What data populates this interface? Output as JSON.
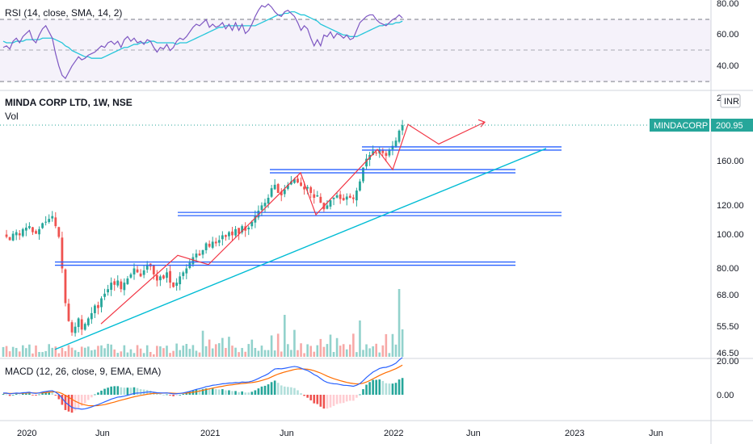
{
  "chart_data": {
    "type": "candlestick",
    "title": "MINDA CORP LTD, 1W, NSE",
    "volume_label": "Vol",
    "currency": "INR",
    "price_scale": "log",
    "price_ylim": [
      46.5,
      205
    ],
    "price_ticks": [
      "160.00",
      "120.00",
      "100.00",
      "80.00",
      "68.00",
      "55.50",
      "46.50"
    ],
    "price_top_tick": "2",
    "x_labels": [
      "2020",
      "Jun",
      "2021",
      "Jun",
      "2022",
      "Jun",
      "2023",
      "Jun"
    ],
    "last_price": {
      "symbol": "MINDACORP",
      "value": "200.95",
      "color": "#26a69a"
    },
    "colors": {
      "up": "#26a69a",
      "down": "#ef5350",
      "zone": "#2962ff",
      "trend": "#00bcd4",
      "path": "#f23645",
      "rsi": "#7e57c2",
      "rsi_ma": "#26c6da",
      "macd": "#2962ff",
      "signal": "#ff6d00"
    },
    "weekly_closes": [
      100,
      98,
      96,
      100,
      101,
      99,
      103,
      104,
      105,
      101,
      100,
      103,
      107,
      108,
      110,
      112,
      105,
      98,
      80,
      64,
      57,
      53,
      55,
      58,
      54,
      56,
      58,
      60,
      63,
      62,
      66,
      68,
      70,
      73,
      72,
      74,
      70,
      73,
      75,
      77,
      80,
      78,
      76,
      79,
      82,
      81,
      77,
      74,
      76,
      75,
      78,
      73,
      71,
      73,
      76,
      78,
      80,
      83,
      86,
      88,
      87,
      90,
      94,
      92,
      95,
      94,
      96,
      99,
      98,
      101,
      99,
      103,
      100,
      105,
      102,
      104,
      108,
      112,
      116,
      120,
      122,
      126,
      134,
      137,
      130,
      128,
      133,
      137,
      140,
      142,
      139,
      136,
      133,
      135,
      130,
      126,
      128,
      122,
      117,
      120,
      124,
      126,
      128,
      125,
      124,
      127,
      126,
      125,
      132,
      140,
      153,
      162,
      166,
      170,
      168,
      172,
      168,
      165,
      171,
      176,
      182,
      194,
      200.95
    ],
    "support_zones": [
      {
        "price": 82.5,
        "start": "2020-03",
        "end": "2022-09"
      },
      {
        "price": 113.5,
        "start": "2020-11",
        "end": "2022-12"
      },
      {
        "price": 149.5,
        "start": "2021-05",
        "end": "2022-09"
      },
      {
        "price": 173,
        "start": "2021-11",
        "end": "2022-12"
      }
    ],
    "rsi": {
      "label": "RSI (14, close, SMA, 14, 2)",
      "ticks": [
        "80.00",
        "60.00",
        "40.00"
      ],
      "ylim": [
        30,
        80
      ],
      "levels": [
        70,
        50,
        30
      ],
      "values": [
        52,
        53,
        51,
        56,
        58,
        55,
        59,
        61,
        63,
        57,
        55,
        60,
        64,
        66,
        62,
        58,
        48,
        40,
        34,
        32,
        36,
        40,
        43,
        46,
        44,
        45,
        47,
        48,
        49,
        51,
        53,
        52,
        55,
        56,
        54,
        56,
        52,
        57,
        59,
        56,
        58,
        55,
        56,
        54,
        57,
        56,
        52,
        49,
        52,
        51,
        54,
        50,
        52,
        56,
        58,
        57,
        59,
        62,
        65,
        67,
        66,
        68,
        70,
        65,
        67,
        65,
        66,
        68,
        64,
        67,
        63,
        68,
        63,
        67,
        61,
        63,
        67,
        72,
        76,
        79,
        78,
        80,
        78,
        75,
        73,
        72,
        75,
        76,
        74,
        72,
        68,
        63,
        66,
        64,
        58,
        53,
        57,
        53,
        60,
        59,
        62,
        58,
        61,
        60,
        58,
        60,
        57,
        58,
        63,
        68,
        70,
        72,
        73,
        73,
        70,
        68,
        67,
        66,
        68,
        70,
        71,
        73,
        71
      ],
      "ma": [
        56,
        55,
        55,
        55,
        56,
        56,
        56,
        57,
        57,
        57,
        57,
        57,
        58,
        58,
        58,
        58,
        57,
        56,
        55,
        53,
        52,
        50,
        49,
        48,
        47,
        46,
        46,
        45,
        45,
        45,
        45,
        46,
        47,
        48,
        49,
        50,
        51,
        52,
        52,
        53,
        54,
        54,
        55,
        55,
        55,
        56,
        56,
        55,
        55,
        55,
        55,
        55,
        55,
        54,
        55,
        55,
        55,
        56,
        57,
        58,
        59,
        60,
        61,
        62,
        63,
        64,
        65,
        65,
        66,
        66,
        66,
        66,
        66,
        66,
        66,
        66,
        66,
        66,
        67,
        68,
        69,
        70,
        71,
        72,
        73,
        73,
        74,
        74,
        75,
        75,
        74,
        73,
        73,
        72,
        71,
        70,
        69,
        67,
        66,
        65,
        64,
        63,
        62,
        61,
        60,
        60,
        59,
        59,
        59,
        60,
        61,
        62,
        63,
        64,
        65,
        66,
        66,
        67,
        67,
        67,
        68,
        68,
        69
      ]
    },
    "macd": {
      "label": "MACD (12, 26, close, 9, EMA, EMA)",
      "ticks": [
        "20.00",
        "0.00"
      ],
      "ylim": [
        -10,
        22
      ],
      "macd_values": [
        1,
        1,
        0.5,
        0.8,
        1,
        0.9,
        1.2,
        1.3,
        1.5,
        1,
        0.8,
        1.1,
        1.6,
        1.9,
        2.2,
        2.4,
        1.5,
        0.2,
        -2,
        -4.5,
        -6,
        -7.5,
        -8,
        -8.2,
        -8.5,
        -8.3,
        -7.8,
        -7.2,
        -6.4,
        -5.8,
        -5,
        -4.2,
        -3.4,
        -2.6,
        -2,
        -1.4,
        -1.2,
        -0.8,
        -0.3,
        0.2,
        0.8,
        1,
        1.1,
        1.3,
        1.6,
        1.7,
        1.5,
        1.2,
        1.1,
        1,
        1.1,
        0.8,
        0.5,
        0.6,
        0.8,
        1.1,
        1.5,
        2,
        2.6,
        3.2,
        3.6,
        4.1,
        4.8,
        5.1,
        5.6,
        5.8,
        6.1,
        6.5,
        6.6,
        6.9,
        6.9,
        7.2,
        7.1,
        7.5,
        7.4,
        7.6,
        8,
        8.7,
        9.6,
        10.6,
        11.4,
        12.4,
        13.9,
        15.2,
        15.4,
        15.3,
        15.6,
        16,
        16.4,
        16.7,
        16.4,
        15.7,
        14.9,
        14.3,
        13.2,
        11.9,
        11,
        9.6,
        8.2,
        7.3,
        6.8,
        6.5,
        6.4,
        6,
        5.6,
        5.5,
        5.3,
        5,
        5.6,
        6.6,
        8.3,
        10.2,
        11.8,
        13.4,
        14.4,
        15.5,
        16,
        16.2,
        16.8,
        17.6,
        18.6,
        20.5,
        22
      ],
      "signal_values": [
        0.8,
        0.9,
        0.8,
        0.8,
        0.8,
        0.8,
        0.9,
        1,
        1.1,
        1.1,
        1,
        1,
        1.1,
        1.3,
        1.5,
        1.7,
        1.7,
        1.4,
        0.7,
        -0.4,
        -1.5,
        -2.7,
        -3.8,
        -4.7,
        -5.5,
        -6,
        -6.4,
        -6.5,
        -6.5,
        -6.4,
        -6.1,
        -5.8,
        -5.3,
        -4.8,
        -4.3,
        -3.7,
        -3.2,
        -2.7,
        -2.2,
        -1.7,
        -1.2,
        -0.8,
        -0.4,
        -0.1,
        0.3,
        0.6,
        0.8,
        0.9,
        0.9,
        1,
        1,
        1,
        0.9,
        0.8,
        0.8,
        0.9,
        1,
        1.2,
        1.5,
        1.8,
        2.2,
        2.6,
        3.1,
        3.5,
        3.9,
        4.3,
        4.7,
        5,
        5.4,
        5.7,
        5.9,
        6.2,
        6.4,
        6.6,
        6.8,
        7,
        7.2,
        7.5,
        7.9,
        8.4,
        9,
        9.6,
        10.5,
        11.4,
        12.2,
        12.8,
        13.4,
        13.9,
        14.4,
        14.9,
        15.2,
        15.3,
        15.2,
        15.1,
        14.7,
        14.2,
        13.5,
        12.8,
        11.9,
        11,
        10.2,
        9.5,
        8.9,
        8.3,
        7.8,
        7.3,
        6.9,
        6.6,
        6.4,
        6.5,
        6.8,
        7.5,
        8.4,
        9.4,
        10.4,
        11.4,
        12.3,
        13.1,
        13.8,
        14.6,
        15.4,
        16.4,
        17.5
      ]
    }
  }
}
